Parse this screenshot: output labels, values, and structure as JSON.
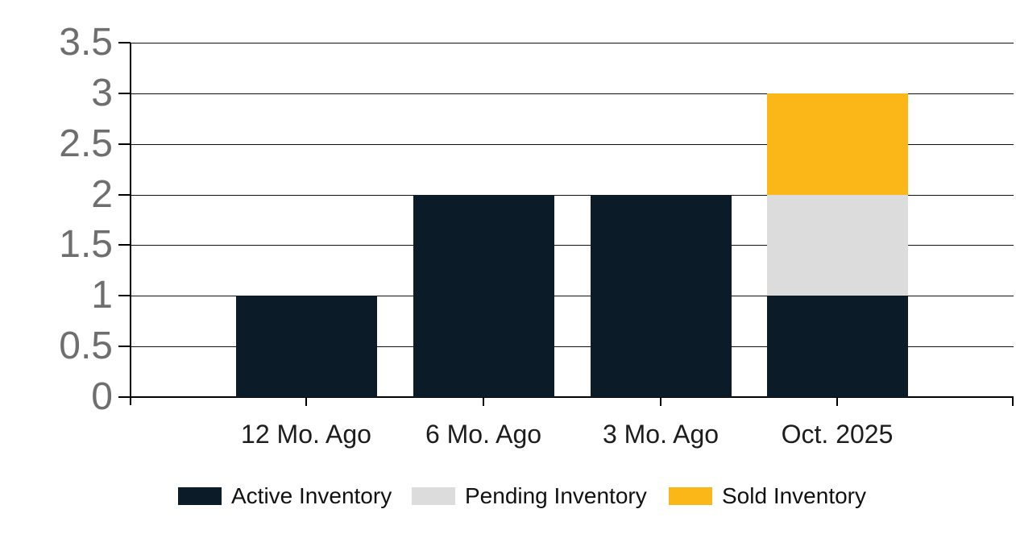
{
  "chart_data": {
    "type": "bar",
    "stacked": true,
    "title": "",
    "categories": [
      "12 Mo. Ago",
      "6 Mo. Ago",
      "3 Mo. Ago",
      "Oct. 2025"
    ],
    "series": [
      {
        "name": "Active Inventory",
        "color": "#0b1c28",
        "values": [
          1,
          2,
          2,
          1
        ]
      },
      {
        "name": "Pending Inventory",
        "color": "#dcdcdc",
        "values": [
          0,
          0,
          0,
          1
        ]
      },
      {
        "name": "Sold Inventory",
        "color": "#fbb617",
        "values": [
          0,
          0,
          0,
          1
        ]
      }
    ],
    "y_axis": {
      "min": 0,
      "max": 3.5,
      "step": 0.5,
      "tick_labels": [
        "0",
        "0.5",
        "1",
        "1.5",
        "2",
        "2.5",
        "3",
        "3.5"
      ]
    },
    "xlabel": "",
    "ylabel": "",
    "grid": true,
    "legend_position": "bottom"
  },
  "colors": {
    "background": "#ffffff",
    "gridline": "#111111",
    "axis": "#000000",
    "y_tick_text": "#6e6e6e",
    "x_tick_text": "#1d1d1d",
    "legend_text": "#111111"
  }
}
